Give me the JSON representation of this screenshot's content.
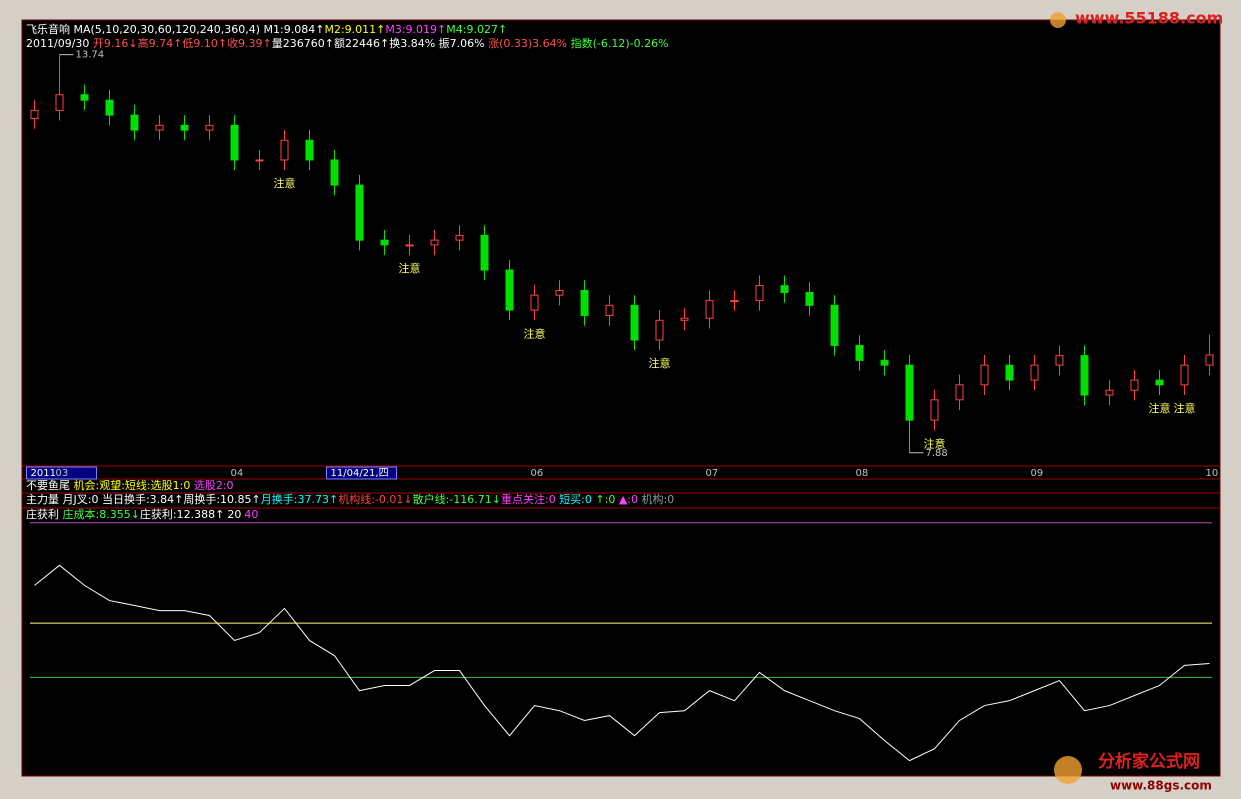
{
  "info": {
    "watermark_top": "www.55188.com",
    "watermark_bottom": "分析家公式网",
    "watermark_url": "www.88gs.com",
    "line1": [
      {
        "text": "飞乐音响",
        "color": "#ffffff"
      },
      {
        "text": " MA(5,10,20,30,60,120,240,360,4) M1:9.084↑",
        "color": "#ffffff"
      },
      {
        "text": "M2:9.011↑",
        "color": "#ffff00"
      },
      {
        "text": "M3:9.019↑",
        "color": "#ff40ff"
      },
      {
        "text": "M4:9.027↑",
        "color": "#40ff40"
      }
    ],
    "line2": [
      {
        "text": "2011/09/30 ",
        "color": "#ffffff"
      },
      {
        "text": "开9.16↓",
        "color": "#ff5050"
      },
      {
        "text": "高9.74↑",
        "color": "#ff5050"
      },
      {
        "text": "低9.10↑",
        "color": "#ff5050"
      },
      {
        "text": "收9.39↑",
        "color": "#ff5050"
      },
      {
        "text": "量236760↑",
        "color": "#ffffff"
      },
      {
        "text": "额22446↑",
        "color": "#ffffff"
      },
      {
        "text": "换3.84% 振7.06% ",
        "color": "#ffffff"
      },
      {
        "text": "涨(0.33)3.64% ",
        "color": "#ff5050"
      },
      {
        "text": "指数(-6.12)-0.26%",
        "color": "#40ff40"
      }
    ],
    "panel_lines": [
      [
        {
          "text": "不要鱼尾 ",
          "color": "#ffffff"
        },
        {
          "text": "机会:观望:短线:选股1:0 ",
          "color": "#ffff00"
        },
        {
          "text": "选股2:0",
          "color": "#ff40ff"
        }
      ],
      [
        {
          "text": "主力量 月J叉:0 当日换手:3.84↑周换手:10.85↑",
          "color": "#ffffff"
        },
        {
          "text": "月换手:37.73↑",
          "color": "#00ffff"
        },
        {
          "text": "机构线:-0.01↓",
          "color": "#ff4040"
        },
        {
          "text": "散户线:-116.71↓",
          "color": "#40ff40"
        },
        {
          "text": "重点关注:0 ",
          "color": "#ff40ff"
        },
        {
          "text": "短买:0 ",
          "color": "#00ffff"
        },
        {
          "text": "↑:0 ",
          "color": "#40ff40"
        },
        {
          "text": "▲:0 ",
          "color": "#ff40ff"
        },
        {
          "text": "机构:0",
          "color": "#80a0a0"
        }
      ],
      [
        {
          "text": "庄获利 ",
          "color": "#ffffff"
        },
        {
          "text": "庄成本:8.355↓",
          "color": "#40ff40"
        },
        {
          "text": "庄获利:12.388↑",
          "color": "#ffffff"
        }
      ]
    ]
  },
  "chart_data": [
    {
      "type": "candlestick",
      "categories": [
        "2011",
        "03",
        null,
        null,
        null,
        null,
        null,
        null,
        "04",
        null,
        null,
        null,
        "11/04/21,四",
        null,
        null,
        null,
        null,
        null,
        null,
        null,
        "06",
        null,
        null,
        null,
        null,
        null,
        null,
        "07",
        null,
        null,
        null,
        null,
        null,
        "08",
        null,
        null,
        null,
        null,
        null,
        null,
        "09",
        null,
        null,
        null,
        null,
        null,
        null,
        "10"
      ],
      "open": [
        12.8,
        12.92,
        13.15,
        13.07,
        12.85,
        12.63,
        12.7,
        12.63,
        12.7,
        12.19,
        12.19,
        12.48,
        12.19,
        11.82,
        11.01,
        10.94,
        10.94,
        11.01,
        11.08,
        10.57,
        9.98,
        10.2,
        10.27,
        9.9,
        10.05,
        9.54,
        9.83,
        9.86,
        10.12,
        10.12,
        10.34,
        10.24,
        10.05,
        9.46,
        9.24,
        9.17,
        8.36,
        8.66,
        8.88,
        9.17,
        8.95,
        9.17,
        9.31,
        8.73,
        8.8,
        8.95,
        8.88,
        9.17
      ],
      "high": [
        13.07,
        13.74,
        13.3,
        13.22,
        13.0,
        12.85,
        12.85,
        12.85,
        12.85,
        12.34,
        12.63,
        12.63,
        12.34,
        11.97,
        11.16,
        11.09,
        11.16,
        11.23,
        11.23,
        10.72,
        10.35,
        10.42,
        10.42,
        10.2,
        10.2,
        9.98,
        10.01,
        10.27,
        10.27,
        10.49,
        10.49,
        10.39,
        10.2,
        9.61,
        9.39,
        9.32,
        8.81,
        9.03,
        9.32,
        9.32,
        9.32,
        9.46,
        9.46,
        8.95,
        9.1,
        9.1,
        9.32,
        9.62
      ],
      "low": [
        12.65,
        12.77,
        12.92,
        12.7,
        12.48,
        12.48,
        12.48,
        12.48,
        12.04,
        12.04,
        12.04,
        12.04,
        11.67,
        10.86,
        10.79,
        10.79,
        10.79,
        10.86,
        10.42,
        9.83,
        9.83,
        10.05,
        9.75,
        9.75,
        9.39,
        9.39,
        9.68,
        9.71,
        9.97,
        9.97,
        10.09,
        9.9,
        9.31,
        9.09,
        9.02,
        7.88,
        8.21,
        8.51,
        8.73,
        8.8,
        8.8,
        9.02,
        8.58,
        8.58,
        8.65,
        8.73,
        8.73,
        9.02
      ],
      "close": [
        12.92,
        13.15,
        13.07,
        12.85,
        12.63,
        12.7,
        12.63,
        12.7,
        12.19,
        12.19,
        12.48,
        12.19,
        11.82,
        11.01,
        10.94,
        10.94,
        11.01,
        11.08,
        10.57,
        9.98,
        10.2,
        10.27,
        9.9,
        10.05,
        9.54,
        9.83,
        9.86,
        10.12,
        10.12,
        10.34,
        10.24,
        10.05,
        9.46,
        9.24,
        9.17,
        8.36,
        8.66,
        8.88,
        9.17,
        8.95,
        9.17,
        9.31,
        8.73,
        8.8,
        8.95,
        8.88,
        9.17,
        9.32
      ],
      "up_color": "#ff4040",
      "down_color": "#00e000",
      "ylim": [
        7.7,
        14.0
      ],
      "annotations": [
        {
          "text": "注意",
          "index": 10
        },
        {
          "text": "注意",
          "index": 15
        },
        {
          "text": "注意",
          "index": 20
        },
        {
          "text": "注意",
          "index": 25
        },
        {
          "text": "注意",
          "index": 36
        },
        {
          "text": "注意",
          "index": 45
        },
        {
          "text": "注意",
          "index": 46
        }
      ],
      "annotation_color": "#ffff60"
    },
    {
      "type": "line",
      "values": [
        53.9,
        61.3,
        53.9,
        48.3,
        46.5,
        44.6,
        44.6,
        42.8,
        33.6,
        36.5,
        45.4,
        33.6,
        28.0,
        15.1,
        17.0,
        17.0,
        22.5,
        22.5,
        9.6,
        -1.5,
        9.6,
        7.7,
        4.1,
        5.9,
        -1.5,
        7.0,
        7.7,
        15.1,
        11.4,
        21.8,
        15.1,
        11.4,
        7.7,
        4.8,
        -3.3,
        -10.7,
        -6.3,
        4.1,
        9.6,
        11.4,
        15.1,
        18.8,
        7.7,
        9.6,
        13.3,
        17.0,
        24.4,
        25.1
      ],
      "color": "#ffffff",
      "ylim": [
        -16,
        78
      ],
      "hlines": [
        {
          "value": 77,
          "color": "#c040c0"
        },
        {
          "value": 40,
          "color": "#ffff80",
          "label_color": "#ff40ff"
        },
        {
          "value": 20,
          "color": "#40c040",
          "label_color": "#ffffff"
        }
      ]
    }
  ]
}
